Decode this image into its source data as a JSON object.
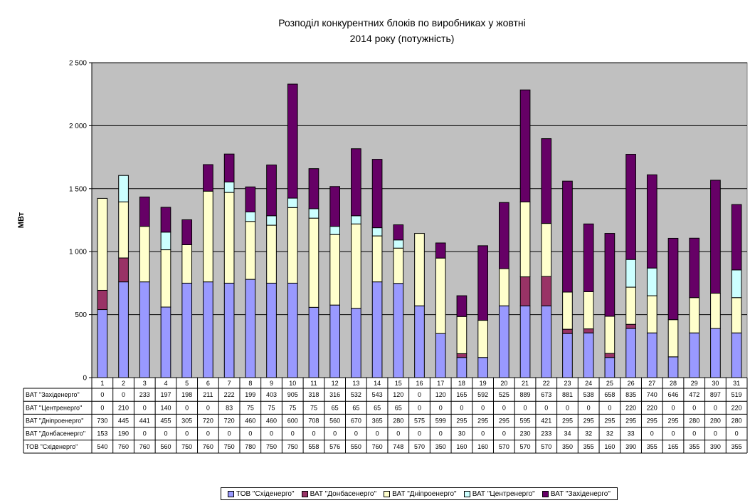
{
  "chart_data": {
    "type": "bar",
    "stacked": true,
    "title_line1": "Розподіл конкурентних блоків по виробниках у жовтні",
    "title_line2": "2014 року (потужність)",
    "ylabel": "МВт",
    "xlabel": "",
    "ylim": [
      0,
      2500
    ],
    "yticks": [
      0,
      500,
      1000,
      1500,
      2000,
      2500
    ],
    "ytick_labels": [
      "0",
      "500",
      "1 000",
      "1 500",
      "2 000",
      "2 500"
    ],
    "grid": true,
    "legend_position": "bottom",
    "categories": [
      "1",
      "2",
      "3",
      "4",
      "5",
      "6",
      "7",
      "8",
      "9",
      "10",
      "11",
      "12",
      "13",
      "14",
      "15",
      "16",
      "17",
      "18",
      "19",
      "20",
      "21",
      "22",
      "23",
      "24",
      "25",
      "26",
      "27",
      "28",
      "29",
      "30",
      "31"
    ],
    "series": [
      {
        "name": "ТОВ \"Східенерго\"",
        "color": "#9999ff",
        "values": [
          540,
          760,
          760,
          560,
          750,
          760,
          750,
          780,
          750,
          750,
          558,
          576,
          550,
          760,
          748,
          570,
          350,
          160,
          160,
          570,
          570,
          570,
          350,
          355,
          160,
          390,
          355,
          165,
          355,
          390,
          355
        ]
      },
      {
        "name": "ВАТ \"Донбасенерго\"",
        "color": "#993366",
        "values": [
          153,
          190,
          0,
          0,
          0,
          0,
          0,
          0,
          0,
          0,
          0,
          0,
          0,
          0,
          0,
          0,
          0,
          30,
          0,
          0,
          230,
          233,
          34,
          32,
          32,
          33,
          0,
          0,
          0,
          0,
          0
        ]
      },
      {
        "name": "ВАТ \"Дніпроенерго\"",
        "color": "#ffffcc",
        "values": [
          730,
          445,
          441,
          455,
          305,
          720,
          720,
          460,
          460,
          600,
          708,
          560,
          670,
          365,
          280,
          575,
          599,
          295,
          295,
          295,
          595,
          421,
          295,
          295,
          295,
          295,
          295,
          295,
          280,
          280,
          280
        ]
      },
      {
        "name": "ВАТ \"Центренерго\"",
        "color": "#ccffff",
        "values": [
          0,
          210,
          0,
          140,
          0,
          0,
          83,
          75,
          75,
          75,
          75,
          65,
          65,
          65,
          65,
          0,
          0,
          0,
          0,
          0,
          0,
          0,
          0,
          0,
          0,
          220,
          220,
          0,
          0,
          0,
          220
        ]
      },
      {
        "name": "ВАТ \"Західенерго\"",
        "color": "#660066",
        "values": [
          0,
          0,
          233,
          197,
          198,
          211,
          222,
          199,
          403,
          905,
          318,
          316,
          532,
          543,
          120,
          0,
          120,
          165,
          592,
          525,
          889,
          673,
          881,
          538,
          658,
          835,
          740,
          646,
          472,
          897,
          519
        ]
      }
    ],
    "table_row_order": [
      4,
      3,
      2,
      1,
      0
    ],
    "table_row_labels": [
      "ВАТ \"Західенерго\"",
      "ВАТ \"Центренерго\"",
      "ВАТ \"Дніпроенерго\"",
      "ВАТ \"Донбасенерго\"",
      "ТОВ \"Східенерго\""
    ]
  }
}
